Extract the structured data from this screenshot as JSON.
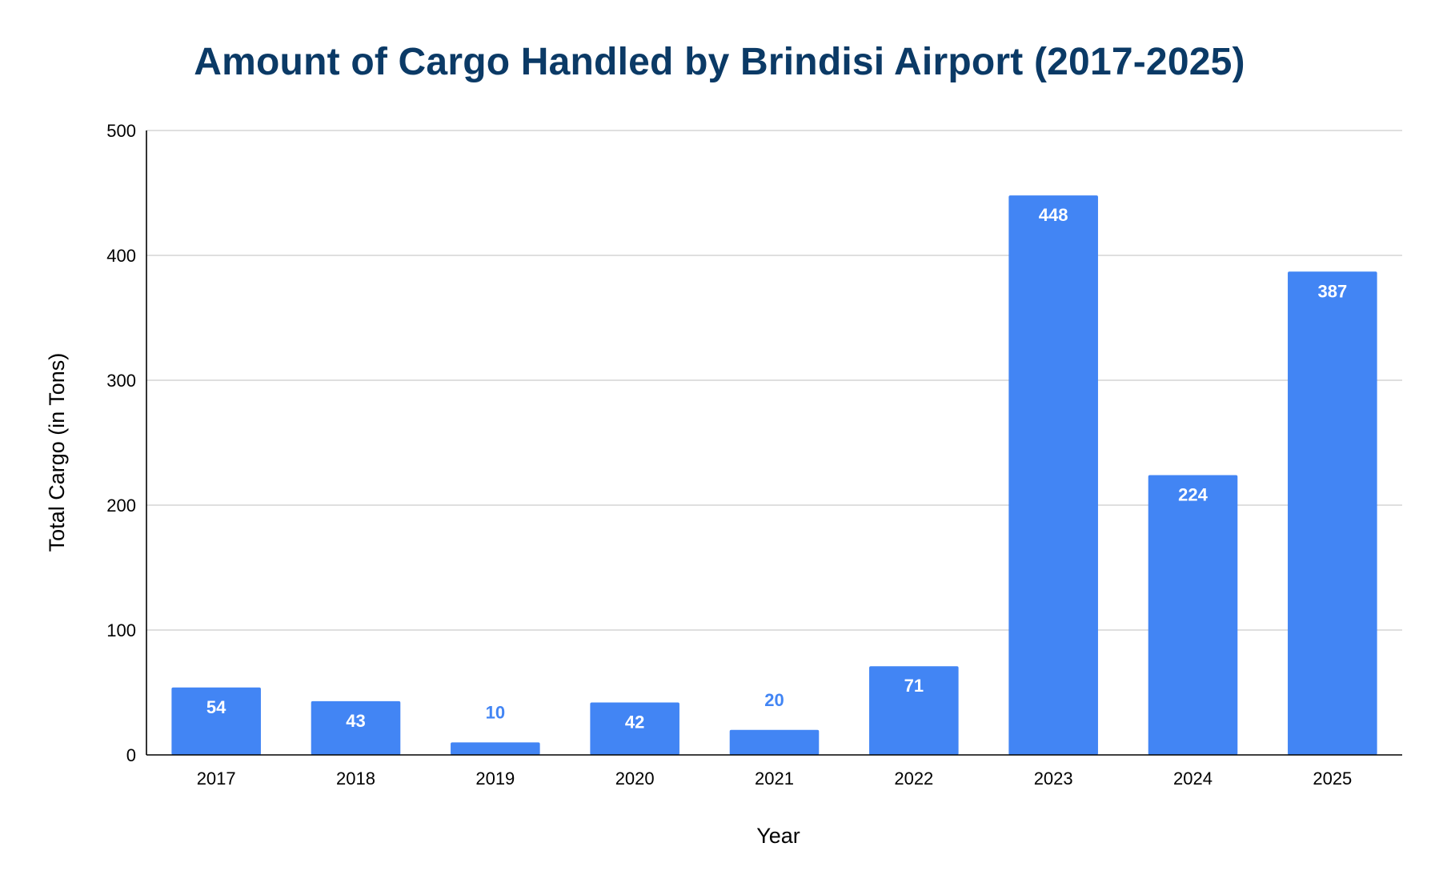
{
  "chart_data": {
    "type": "bar",
    "title": "Amount of Cargo Handled by Brindisi Airport (2017-2025)",
    "xlabel": "Year",
    "ylabel": "Total Cargo (in Tons)",
    "categories": [
      "2017",
      "2018",
      "2019",
      "2020",
      "2021",
      "2022",
      "2023",
      "2024",
      "2025"
    ],
    "series": [
      {
        "values": [
          54,
          43,
          10,
          42,
          20,
          71,
          448,
          224,
          387
        ]
      }
    ],
    "ylim": [
      0,
      500
    ],
    "yticks": [
      0,
      100,
      200,
      300,
      400,
      500
    ],
    "grid": true,
    "legend": "none",
    "data_labels": true,
    "colors": {
      "bar": "#4285f4",
      "title": "#0b3a66",
      "label_inside": "#ffffff",
      "label_outside": "#4285f4"
    }
  }
}
